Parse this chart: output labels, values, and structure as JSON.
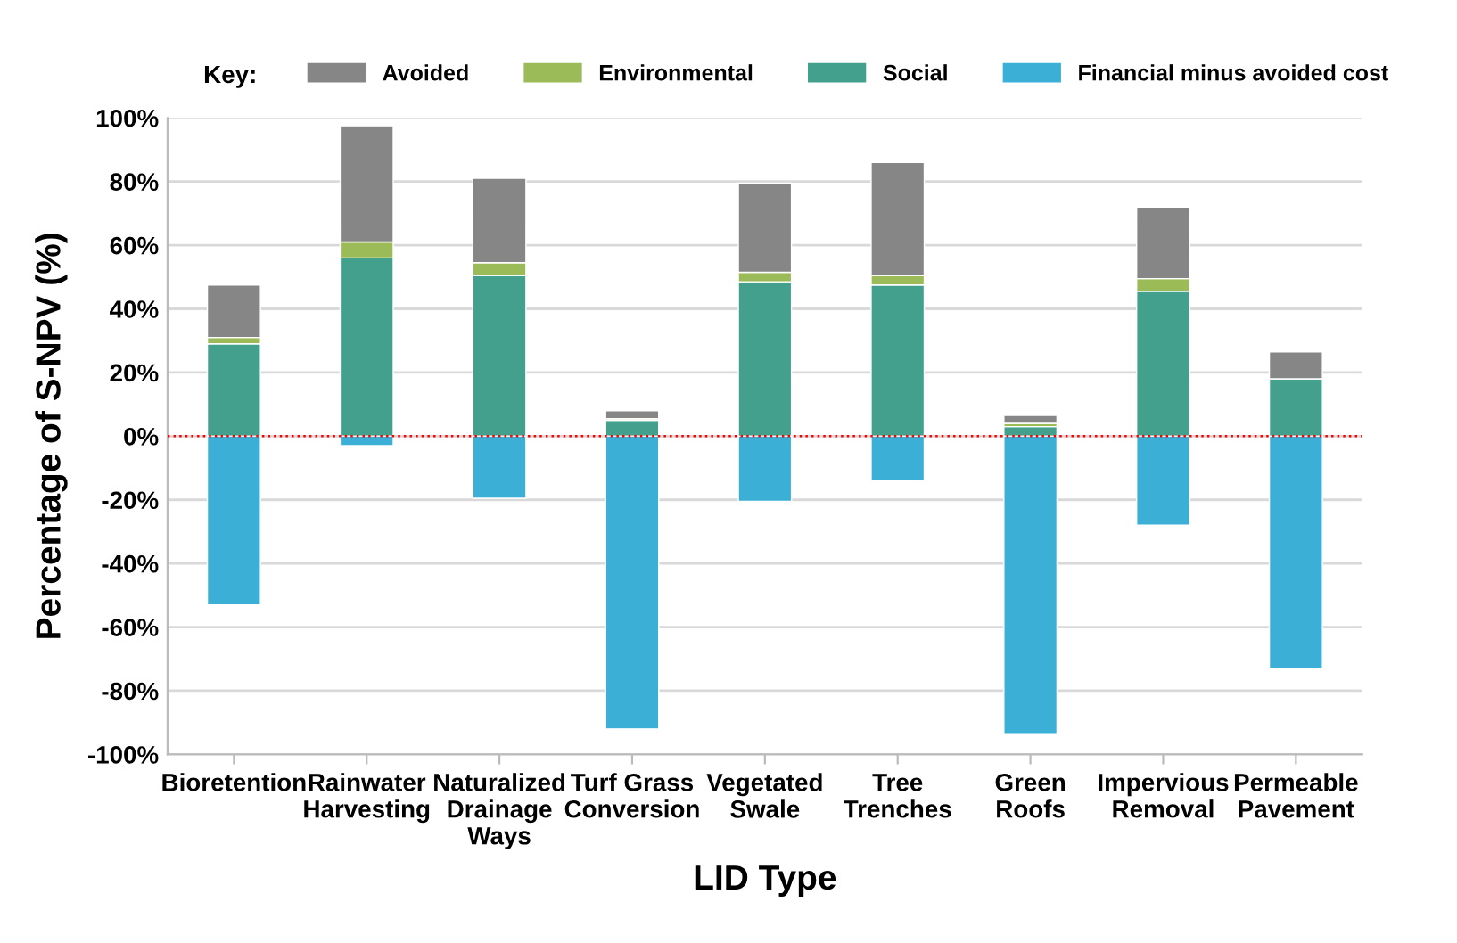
{
  "chart_data": {
    "type": "bar",
    "stacked": true,
    "xlabel": "LID Type",
    "ylabel": "Percentage of S-NPV (%)",
    "legend_title": "Key:",
    "legend": "top",
    "categories": [
      "Bioretention",
      "Rainwater\nHarvesting",
      "Naturalized\nDrainage\nWays",
      "Turf Grass\nConversion",
      "Vegetated\nSwale",
      "Tree\nTrenches",
      "Green\nRoofs",
      "Impervious\nRemoval",
      "Permeable\nPavement"
    ],
    "series": [
      {
        "name": "Social",
        "color": "#43a08c",
        "values": [
          29,
          56,
          50.5,
          5,
          48.5,
          47.5,
          3,
          45.5,
          18
        ]
      },
      {
        "name": "Environmental",
        "color": "#9bbb59",
        "values": [
          2,
          5,
          4,
          0.5,
          3,
          3,
          1,
          4,
          null
        ]
      },
      {
        "name": "Avoided",
        "color": "#868686",
        "values": [
          16.5,
          36.5,
          26.5,
          2.5,
          28,
          35.5,
          2.5,
          22.5,
          8.5
        ]
      },
      {
        "name": "Financial minus avoided cost",
        "color": "#3bafd6",
        "values": [
          -53,
          -3,
          -19.5,
          -92,
          -20.5,
          -14,
          -93.5,
          -28,
          -73
        ]
      }
    ],
    "ylim": [
      -100,
      100
    ],
    "yticks": [
      {
        "value": -100,
        "label": "-100%"
      },
      {
        "value": -80,
        "label": "-80%"
      },
      {
        "value": -60,
        "label": "-60%"
      },
      {
        "value": -40,
        "label": "-40%"
      },
      {
        "value": -20,
        "label": "-20%"
      },
      {
        "value": 0,
        "label": "0%"
      },
      {
        "value": 20,
        "label": "20%"
      },
      {
        "value": 40,
        "label": "40%"
      },
      {
        "value": 60,
        "label": "60%"
      },
      {
        "value": 80,
        "label": "80%"
      },
      {
        "value": 100,
        "label": "100%"
      }
    ],
    "grid": "y",
    "ref_lines": [
      {
        "axis": "y",
        "value": 0,
        "color": "#ff0000",
        "line_style": "dotted"
      }
    ]
  }
}
